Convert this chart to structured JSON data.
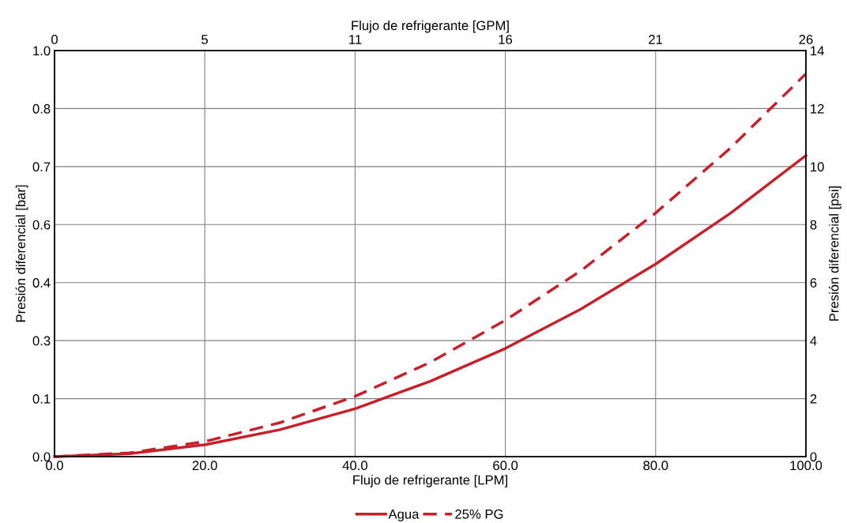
{
  "chart_data": {
    "type": "line",
    "xlabel": "Flujo de refrigerante [LPM]",
    "x2label": "Flujo de refrigerante [GPM]",
    "ylabel": "Presión diferencial [bar]",
    "y2label": "Presión diferencial [psi]",
    "x": [
      0,
      10,
      20,
      30,
      40,
      50,
      60,
      70,
      80,
      90,
      100
    ],
    "series": [
      {
        "name": "Agua",
        "color": "#c8202a",
        "axis": "y2",
        "line_style": "solid",
        "values": [
          0,
          0.1,
          0.41,
          0.93,
          1.65,
          2.6,
          3.73,
          5.08,
          6.64,
          8.4,
          10.38
        ]
      },
      {
        "name": "25% PG",
        "color": "#c8202a",
        "axis": "y2",
        "line_style": "dashed",
        "values": [
          0,
          0.13,
          0.52,
          1.17,
          2.08,
          3.25,
          4.7,
          6.4,
          8.4,
          10.65,
          13.2
        ]
      }
    ],
    "xlim": [
      0,
      100
    ],
    "xticks": [
      {
        "value": 0,
        "label": "0.0"
      },
      {
        "value": 20,
        "label": "20.0"
      },
      {
        "value": 40,
        "label": "40.0"
      },
      {
        "value": 60,
        "label": "60.0"
      },
      {
        "value": 80,
        "label": "80.0"
      },
      {
        "value": 100,
        "label": "100.0"
      }
    ],
    "x2lim": [
      0,
      26.42
    ],
    "x2ticks": [
      0,
      {
        "value": 5.28,
        "label": "5"
      },
      {
        "value": 10.57,
        "label": "11"
      },
      {
        "value": 15.85,
        "label": "16"
      },
      {
        "value": 21.13,
        "label": "21"
      },
      {
        "value": 26.42,
        "label": "26"
      }
    ],
    "ylim": [
      0,
      0.9653
    ],
    "yticks": [
      {
        "value": 0,
        "label": "0.0"
      },
      {
        "value": 0.1379,
        "label": "0.1"
      },
      {
        "value": 0.2758,
        "label": "0.3"
      },
      {
        "value": 0.4137,
        "label": "0.4"
      },
      {
        "value": 0.5516,
        "label": "0.6"
      },
      {
        "value": 0.6895,
        "label": "0.7"
      },
      {
        "value": 0.8274,
        "label": "0.8"
      },
      {
        "value": 0.9653,
        "label": "1.0"
      }
    ],
    "y2lim": [
      0,
      14
    ],
    "y2ticks": [
      0,
      2,
      4,
      6,
      8,
      10,
      12,
      14
    ],
    "grid": true,
    "legend": "bottom",
    "marker": "none"
  }
}
